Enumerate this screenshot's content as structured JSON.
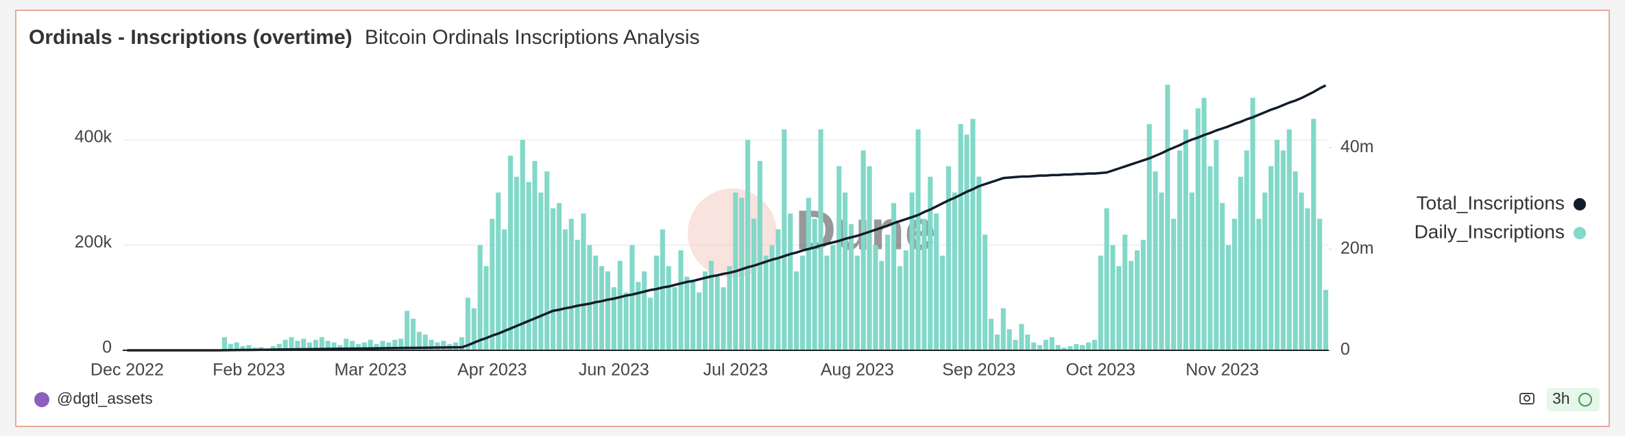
{
  "chart_data": {
    "type": "bar",
    "title": "Ordinals - Inscriptions (overtime)",
    "subtitle": "Bitcoin Ordinals Inscriptions Analysis",
    "watermark": "Dune",
    "author": "@dgtl_assets",
    "refresh": "3h",
    "categories": [
      "Dec 2022",
      null,
      null,
      null,
      null,
      null,
      null,
      null,
      null,
      null,
      null,
      null,
      null,
      null,
      null,
      null,
      null,
      null,
      null,
      null,
      "Feb 2023",
      null,
      null,
      null,
      null,
      null,
      null,
      null,
      null,
      null,
      null,
      null,
      null,
      null,
      null,
      null,
      null,
      null,
      null,
      null,
      "Mar 2023",
      null,
      null,
      null,
      null,
      null,
      null,
      null,
      null,
      null,
      null,
      null,
      null,
      null,
      null,
      null,
      null,
      null,
      null,
      null,
      "Apr 2023",
      null,
      null,
      null,
      null,
      null,
      null,
      null,
      null,
      null,
      null,
      null,
      null,
      null,
      null,
      null,
      null,
      null,
      null,
      null,
      "Jun 2023",
      null,
      null,
      null,
      null,
      null,
      null,
      null,
      null,
      null,
      null,
      null,
      null,
      null,
      null,
      null,
      null,
      null,
      null,
      null,
      "Jul 2023",
      null,
      null,
      null,
      null,
      null,
      null,
      null,
      null,
      null,
      null,
      null,
      null,
      null,
      null,
      null,
      null,
      null,
      null,
      null,
      "Aug 2023",
      null,
      null,
      null,
      null,
      null,
      null,
      null,
      null,
      null,
      null,
      null,
      null,
      null,
      null,
      null,
      null,
      null,
      null,
      null,
      "Sep 2023",
      null,
      null,
      null,
      null,
      null,
      null,
      null,
      null,
      null,
      null,
      null,
      null,
      null,
      null,
      null,
      null,
      null,
      null,
      null,
      "Oct 2023",
      null,
      null,
      null,
      null,
      null,
      null,
      null,
      null,
      null,
      null,
      null,
      null,
      null,
      null,
      null,
      null,
      null,
      null,
      null,
      "Nov 2023",
      null,
      null,
      null,
      null,
      null,
      null,
      null,
      null,
      null,
      null,
      null,
      null,
      null,
      null,
      null,
      null,
      null
    ],
    "series": [
      {
        "name": "Total_Inscriptions",
        "type": "line",
        "axis": "y2",
        "color": "#111c2b",
        "values": [
          0,
          0,
          0,
          0,
          0,
          0,
          0,
          0,
          0,
          0,
          0,
          0,
          0,
          0,
          0,
          0,
          15000,
          30000,
          45000,
          60000,
          75000,
          90000,
          105000,
          120000,
          135000,
          150000,
          165000,
          180000,
          195000,
          210000,
          225000,
          240000,
          255000,
          270000,
          285000,
          300000,
          315000,
          330000,
          345000,
          360000,
          375000,
          390000,
          405000,
          420000,
          435000,
          450000,
          465000,
          480000,
          495000,
          510000,
          525000,
          540000,
          555000,
          570000,
          585000,
          600000,
          1000000,
          1500000,
          2000000,
          2400000,
          2900000,
          3300000,
          3800000,
          4300000,
          4800000,
          5300000,
          5800000,
          6300000,
          6800000,
          7300000,
          7800000,
          8000000,
          8300000,
          8500000,
          8800000,
          9000000,
          9200000,
          9500000,
          9700000,
          10000000,
          10200000,
          10500000,
          10800000,
          11000000,
          11300000,
          11600000,
          11900000,
          12100000,
          12400000,
          12600000,
          12900000,
          13200000,
          13500000,
          13700000,
          14000000,
          14300000,
          14600000,
          14800000,
          15100000,
          15300000,
          15600000,
          16000000,
          16400000,
          16700000,
          17100000,
          17500000,
          17900000,
          18200000,
          18600000,
          19000000,
          19300000,
          19700000,
          20000000,
          20300000,
          20700000,
          21000000,
          21300000,
          21600000,
          22000000,
          22300000,
          22600000,
          23000000,
          23400000,
          23800000,
          24200000,
          24600000,
          25100000,
          25500000,
          25900000,
          26300000,
          26700000,
          27300000,
          27800000,
          28400000,
          29000000,
          29600000,
          30100000,
          30700000,
          31300000,
          31800000,
          32400000,
          32800000,
          33200000,
          33600000,
          34000000,
          34100000,
          34200000,
          34300000,
          34300000,
          34400000,
          34500000,
          34500000,
          34600000,
          34600000,
          34700000,
          34700000,
          34800000,
          34800000,
          34900000,
          34900000,
          35000000,
          35100000,
          35500000,
          35900000,
          36300000,
          36700000,
          37100000,
          37500000,
          37900000,
          38400000,
          38900000,
          39500000,
          40000000,
          40500000,
          41100000,
          41600000,
          42000000,
          42500000,
          42900000,
          43400000,
          43800000,
          44200000,
          44700000,
          45100000,
          45600000,
          46000000,
          46500000,
          47000000,
          47500000,
          47900000,
          48400000,
          48900000,
          49300000,
          49800000,
          50400000,
          51000000,
          51700000,
          52300000
        ]
      },
      {
        "name": "Daily_Inscriptions",
        "type": "bar",
        "color": "#82d8c9",
        "values": [
          0,
          0,
          0,
          0,
          0,
          0,
          0,
          0,
          0,
          0,
          0,
          0,
          0,
          0,
          0,
          0,
          25000,
          12000,
          15000,
          8000,
          10000,
          5000,
          6000,
          3000,
          8000,
          12000,
          20000,
          25000,
          18000,
          22000,
          15000,
          20000,
          25000,
          18000,
          15000,
          10000,
          22000,
          18000,
          12000,
          15000,
          20000,
          12000,
          18000,
          15000,
          20000,
          22000,
          75000,
          60000,
          35000,
          30000,
          20000,
          15000,
          18000,
          12000,
          15000,
          25000,
          100000,
          80000,
          200000,
          160000,
          250000,
          300000,
          230000,
          370000,
          330000,
          400000,
          320000,
          360000,
          300000,
          340000,
          270000,
          280000,
          230000,
          250000,
          210000,
          260000,
          200000,
          180000,
          160000,
          150000,
          120000,
          170000,
          110000,
          200000,
          130000,
          150000,
          100000,
          180000,
          230000,
          160000,
          120000,
          190000,
          140000,
          130000,
          110000,
          150000,
          170000,
          140000,
          120000,
          160000,
          300000,
          290000,
          400000,
          250000,
          360000,
          180000,
          200000,
          230000,
          420000,
          260000,
          150000,
          180000,
          290000,
          250000,
          420000,
          180000,
          200000,
          350000,
          300000,
          240000,
          180000,
          380000,
          350000,
          200000,
          170000,
          220000,
          280000,
          160000,
          190000,
          300000,
          420000,
          250000,
          330000,
          260000,
          180000,
          350000,
          300000,
          430000,
          410000,
          440000,
          330000,
          220000,
          60000,
          30000,
          80000,
          40000,
          20000,
          50000,
          30000,
          15000,
          10000,
          20000,
          25000,
          10000,
          5000,
          8000,
          12000,
          10000,
          15000,
          20000,
          180000,
          270000,
          200000,
          160000,
          220000,
          170000,
          190000,
          210000,
          430000,
          340000,
          300000,
          505000,
          250000,
          380000,
          420000,
          300000,
          460000,
          480000,
          350000,
          400000,
          280000,
          200000,
          250000,
          330000,
          380000,
          480000,
          250000,
          300000,
          350000,
          400000,
          380000,
          420000,
          340000,
          300000,
          270000,
          440000,
          250000,
          115000
        ]
      }
    ],
    "ylim": [
      0,
      520000
    ],
    "yticks": [
      0,
      {
        "value": 200000,
        "label": "200k"
      },
      {
        "value": 400000,
        "label": "400k"
      }
    ],
    "y2lim": [
      0,
      54000000
    ],
    "y2ticks": [
      0,
      {
        "value": 20000000,
        "label": "20m"
      },
      {
        "value": 40000000,
        "label": "40m"
      }
    ],
    "grid": true,
    "legend": "right"
  }
}
